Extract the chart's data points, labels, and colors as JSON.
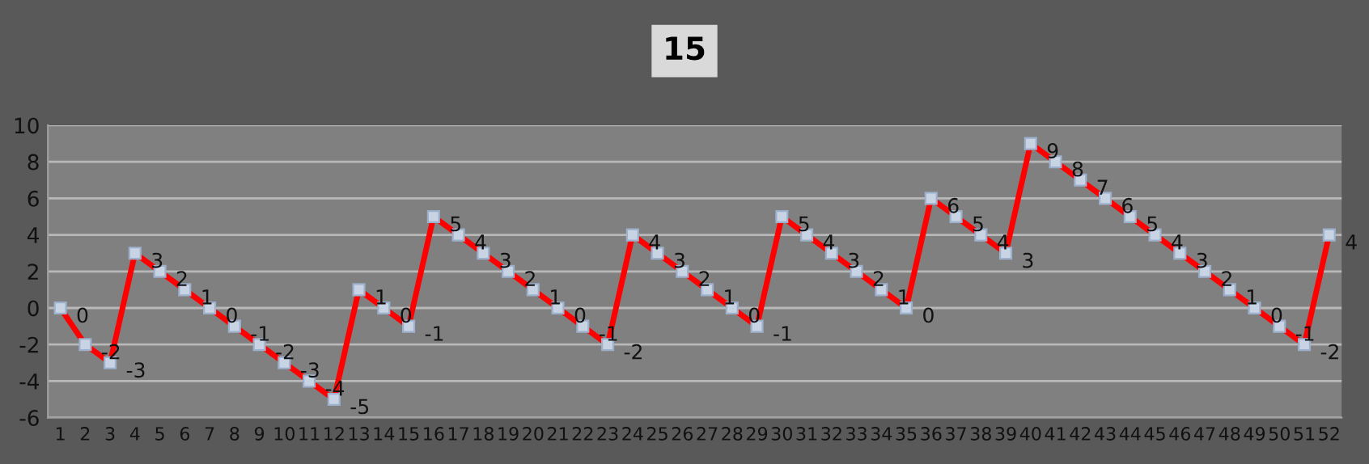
{
  "chart_data": {
    "type": "line",
    "title": "15",
    "categories": [
      "1",
      "2",
      "3",
      "4",
      "5",
      "6",
      "7",
      "8",
      "9",
      "10",
      "11",
      "12",
      "13",
      "14",
      "15",
      "16",
      "17",
      "18",
      "19",
      "20",
      "21",
      "22",
      "23",
      "24",
      "25",
      "26",
      "27",
      "28",
      "29",
      "30",
      "31",
      "32",
      "33",
      "34",
      "35",
      "36",
      "37",
      "38",
      "39",
      "40",
      "41",
      "42",
      "43",
      "44",
      "45",
      "46",
      "47",
      "48",
      "49",
      "50",
      "51",
      "52"
    ],
    "series": [
      {
        "color": "#ff0000",
        "values": [
          0,
          -2,
          -3,
          3,
          2,
          1,
          0,
          -1,
          -2,
          -3,
          -4,
          -5,
          1,
          0,
          -1,
          5,
          4,
          3,
          2,
          1,
          0,
          -1,
          -2,
          4,
          3,
          2,
          1,
          0,
          -1,
          5,
          4,
          3,
          2,
          1,
          0,
          6,
          5,
          4,
          3,
          9,
          8,
          7,
          6,
          5,
          4,
          3,
          2,
          1,
          0,
          -1,
          -2,
          4
        ]
      }
    ],
    "ylim": [
      -6,
      10
    ],
    "yticks": [
      -6,
      -4,
      -2,
      0,
      2,
      4,
      6,
      8,
      10
    ],
    "grid": "y",
    "marker": "square",
    "line_style": "solid",
    "data_labels": true,
    "legend": false
  }
}
